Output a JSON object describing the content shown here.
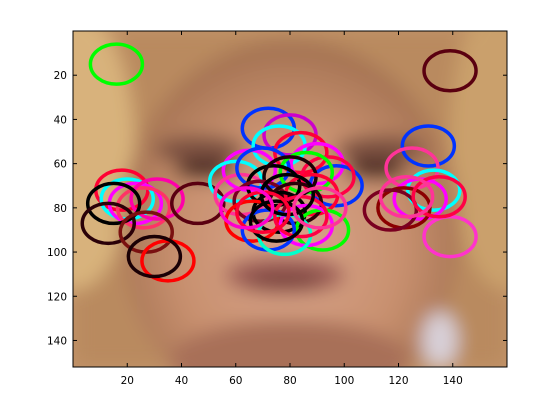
{
  "chart_data": {
    "type": "scatter",
    "title": "",
    "xlabel": "",
    "ylabel": "",
    "xlim": [
      0,
      160
    ],
    "ylim": [
      152,
      0
    ],
    "y_reversed": true,
    "grid": false,
    "legend": "none",
    "background": "image of a face (blurred) filling the axes",
    "xticks": [
      20,
      40,
      60,
      80,
      100,
      120,
      140
    ],
    "yticks": [
      20,
      40,
      60,
      80,
      100,
      120,
      140
    ],
    "marker": "open circle",
    "points": [
      {
        "x": 16,
        "y": 15,
        "color": "#00ff00"
      },
      {
        "x": 139,
        "y": 18,
        "color": "#5a0010"
      },
      {
        "x": 131,
        "y": 52,
        "color": "#0033ff"
      },
      {
        "x": 125,
        "y": 62,
        "color": "#ff3399"
      },
      {
        "x": 133,
        "y": 72,
        "color": "#00ffff"
      },
      {
        "x": 128,
        "y": 76,
        "color": "#ff00ff"
      },
      {
        "x": 122,
        "y": 80,
        "color": "#8b0000"
      },
      {
        "x": 117,
        "y": 81,
        "color": "#7a0020"
      },
      {
        "x": 139,
        "y": 93,
        "color": "#ff33cc"
      },
      {
        "x": 135,
        "y": 75,
        "color": "#ff0044"
      },
      {
        "x": 123,
        "y": 75,
        "color": "#ff3399"
      },
      {
        "x": 18,
        "y": 72,
        "color": "#ff0033"
      },
      {
        "x": 20,
        "y": 76,
        "color": "#00ffff"
      },
      {
        "x": 23,
        "y": 78,
        "color": "#ff00ff"
      },
      {
        "x": 26,
        "y": 80,
        "color": "#ff3366"
      },
      {
        "x": 31,
        "y": 76,
        "color": "#ff00aa"
      },
      {
        "x": 15,
        "y": 78,
        "color": "#000000"
      },
      {
        "x": 13,
        "y": 87,
        "color": "#2a0008"
      },
      {
        "x": 27,
        "y": 91,
        "color": "#7a1010"
      },
      {
        "x": 35,
        "y": 104,
        "color": "#ff0000"
      },
      {
        "x": 30,
        "y": 102,
        "color": "#1a0005"
      },
      {
        "x": 46,
        "y": 78,
        "color": "#5a0010"
      },
      {
        "x": 72,
        "y": 44,
        "color": "#0033ff"
      },
      {
        "x": 80,
        "y": 47,
        "color": "#cc00cc"
      },
      {
        "x": 76,
        "y": 52,
        "color": "#00ffff"
      },
      {
        "x": 84,
        "y": 55,
        "color": "#ff0033"
      },
      {
        "x": 90,
        "y": 60,
        "color": "#ff00ff"
      },
      {
        "x": 65,
        "y": 63,
        "color": "#ff00ff"
      },
      {
        "x": 60,
        "y": 68,
        "color": "#00ffff"
      },
      {
        "x": 62,
        "y": 74,
        "color": "#ff3399"
      },
      {
        "x": 97,
        "y": 70,
        "color": "#0033ff"
      },
      {
        "x": 94,
        "y": 66,
        "color": "#ff0044"
      },
      {
        "x": 70,
        "y": 62,
        "color": "#0033ff"
      },
      {
        "x": 86,
        "y": 64,
        "color": "#00ff00"
      },
      {
        "x": 74,
        "y": 70,
        "color": "#000000"
      },
      {
        "x": 80,
        "y": 66,
        "color": "#1a0005"
      },
      {
        "x": 69,
        "y": 77,
        "color": "#7a0020"
      },
      {
        "x": 88,
        "y": 74,
        "color": "#ff0033"
      },
      {
        "x": 76,
        "y": 82,
        "color": "#000000"
      },
      {
        "x": 82,
        "y": 78,
        "color": "#2a0008"
      },
      {
        "x": 66,
        "y": 86,
        "color": "#ff0000"
      },
      {
        "x": 92,
        "y": 90,
        "color": "#00ff00"
      },
      {
        "x": 86,
        "y": 88,
        "color": "#ff00ff"
      },
      {
        "x": 72,
        "y": 90,
        "color": "#0033ff"
      },
      {
        "x": 78,
        "y": 92,
        "color": "#00ffcc"
      },
      {
        "x": 84,
        "y": 84,
        "color": "#ff0044"
      },
      {
        "x": 75,
        "y": 86,
        "color": "#000000"
      },
      {
        "x": 79,
        "y": 74,
        "color": "#000000"
      },
      {
        "x": 70,
        "y": 82,
        "color": "#ff0033"
      },
      {
        "x": 64,
        "y": 80,
        "color": "#ff00cc"
      },
      {
        "x": 91,
        "y": 80,
        "color": "#ff3399"
      }
    ]
  }
}
